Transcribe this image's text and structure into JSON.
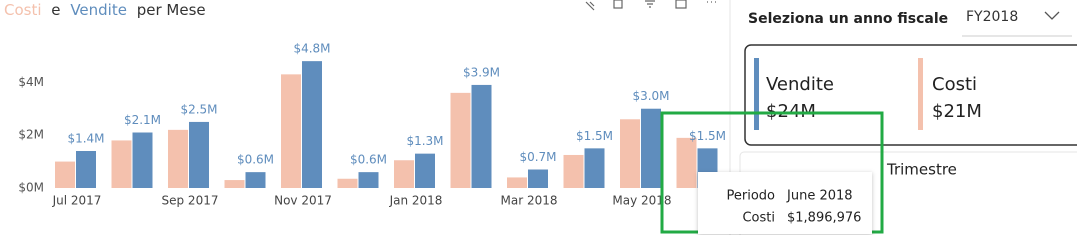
{
  "chart_data": {
    "type": "bar",
    "title": [
      "Costi",
      "e",
      "Vendite",
      "per Mese"
    ],
    "categories": [
      "Jul 2017",
      null,
      "Sep 2017",
      null,
      "Nov 2017",
      null,
      "Jan 2018",
      null,
      "Mar 2018",
      null,
      "May 2018",
      null
    ],
    "series": [
      {
        "name": "Costi",
        "color": "#f4c1ad",
        "values": [
          1.0,
          1.8,
          2.2,
          0.3,
          4.3,
          0.35,
          1.05,
          3.6,
          0.4,
          1.25,
          2.6,
          1.896976
        ]
      },
      {
        "name": "Vendite",
        "color": "#5f8dbd",
        "values": [
          1.4,
          2.1,
          2.5,
          0.6,
          4.8,
          0.6,
          1.3,
          3.9,
          0.7,
          1.5,
          3.0,
          1.5
        ],
        "value_labels": [
          "$1.4M",
          "$2.1M",
          "$2.5M",
          "$0.6M",
          "$4.8M",
          "$0.6M",
          "$1.3M",
          "$3.9M",
          "$0.7M",
          "$1.5M",
          "$3.0M",
          "$1.5M"
        ]
      }
    ],
    "ylim": [
      0,
      7
    ],
    "yticks": [
      {
        "value": 0,
        "label": "$0M"
      },
      {
        "value": 2,
        "label": "$2M"
      },
      {
        "value": 4,
        "label": "$4M"
      }
    ],
    "grid": false
  },
  "slicer": {
    "label": "Seleziona un anno fiscale",
    "value": "FY2018"
  },
  "cards": [
    {
      "title": "Vendite",
      "value": "$24M"
    },
    {
      "title": "Costi",
      "value": "$21M"
    }
  ],
  "filter": {
    "label": "Trimestre"
  },
  "tooltip": {
    "rows": [
      [
        "Periodo",
        "June 2018"
      ],
      [
        "Costi",
        "$1,896,976"
      ]
    ]
  }
}
